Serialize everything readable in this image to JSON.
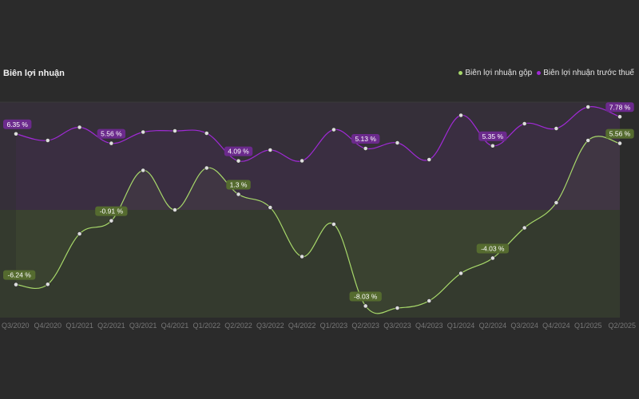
{
  "title": "Biên lợi nhuận",
  "colors": {
    "background": "#2b2b2b",
    "gross": "#a7d86a",
    "gross_label_bg": "#556b2f",
    "pretax": "#a02ad6",
    "pretax_label_bg": "#6b2a8c",
    "point": "#dddddd",
    "zero_band_gross": "#343a2e",
    "zero_band_pretax": "#352f39"
  },
  "chart_data": {
    "type": "line",
    "title": "Biên lợi nhuận",
    "xlabel": "",
    "ylabel": "",
    "ylim": [
      -9,
      9
    ],
    "grid": false,
    "legend_position": "top-right",
    "categories": [
      "Q3/2020",
      "Q4/2020",
      "Q1/2021",
      "Q2/2021",
      "Q3/2021",
      "Q4/2021",
      "Q1/2022",
      "Q2/2022",
      "Q3/2022",
      "Q4/2022",
      "Q1/2023",
      "Q2/2023",
      "Q3/2023",
      "Q4/2023",
      "Q1/2024",
      "Q2/2024",
      "Q3/2024",
      "Q4/2024",
      "Q1/2025",
      "Q2/2025"
    ],
    "series": [
      {
        "name": "Biên lợi nhuận gộp",
        "key": "gross",
        "values": [
          -6.24,
          -6.22,
          -2.0,
          -0.91,
          3.3,
          0.0,
          3.5,
          1.3,
          0.2,
          -3.9,
          -1.2,
          -8.03,
          -8.2,
          -7.6,
          -5.3,
          -4.03,
          -1.5,
          0.6,
          5.8,
          5.56
        ],
        "labels": [
          {
            "index": 0,
            "text": "-6.24 %"
          },
          {
            "index": 3,
            "text": "-0.91 %"
          },
          {
            "index": 7,
            "text": "1.3 %"
          },
          {
            "index": 11,
            "text": "-8.03 %"
          },
          {
            "index": 15,
            "text": "-4.03 %"
          },
          {
            "index": 19,
            "text": "5.56 %"
          }
        ]
      },
      {
        "name": "Biên lợi nhuận trước thuế",
        "key": "pretax",
        "values": [
          6.35,
          5.8,
          6.9,
          5.56,
          6.5,
          6.6,
          6.4,
          4.09,
          5.0,
          4.1,
          6.7,
          5.13,
          5.6,
          4.2,
          7.9,
          5.35,
          7.2,
          6.8,
          8.6,
          7.78
        ],
        "labels": [
          {
            "index": 0,
            "text": "6.35 %"
          },
          {
            "index": 3,
            "text": "5.56 %"
          },
          {
            "index": 7,
            "text": "4.09 %"
          },
          {
            "index": 11,
            "text": "5.13 %"
          },
          {
            "index": 15,
            "text": "5.35 %"
          },
          {
            "index": 19,
            "text": "7.78 %"
          }
        ]
      }
    ]
  }
}
